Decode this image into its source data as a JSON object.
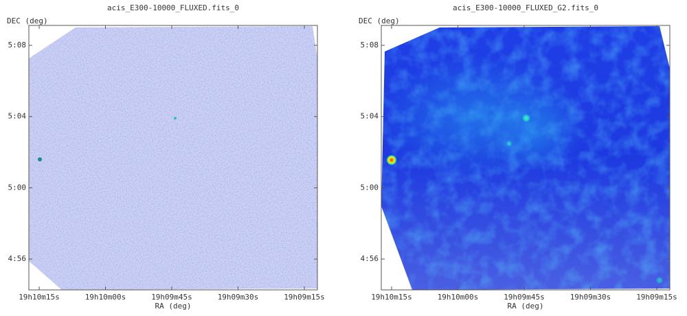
{
  "panels": [
    {
      "title": "acis_E300-10000_FLUXED.fits_0",
      "x_label": "RA (deg)",
      "y_label": "DEC (deg)",
      "xticks": [
        "19h10m15s",
        "19h10m00s",
        "19h09m45s",
        "19h09m30s",
        "19h09m15s"
      ],
      "yticks": [
        "5:08",
        "5:04",
        "5:00",
        "4:56"
      ]
    },
    {
      "title": "acis_E300-10000_FLUXED_G2.fits_0",
      "x_label": "RA (deg)",
      "y_label": "DEC (deg)",
      "xticks": [
        "19h10m15s",
        "19h10m00s",
        "19h09m45s",
        "19h09m30s",
        "19h09m15s"
      ],
      "yticks": [
        "5:08",
        "5:04",
        "5:00",
        "4:56"
      ]
    }
  ]
}
